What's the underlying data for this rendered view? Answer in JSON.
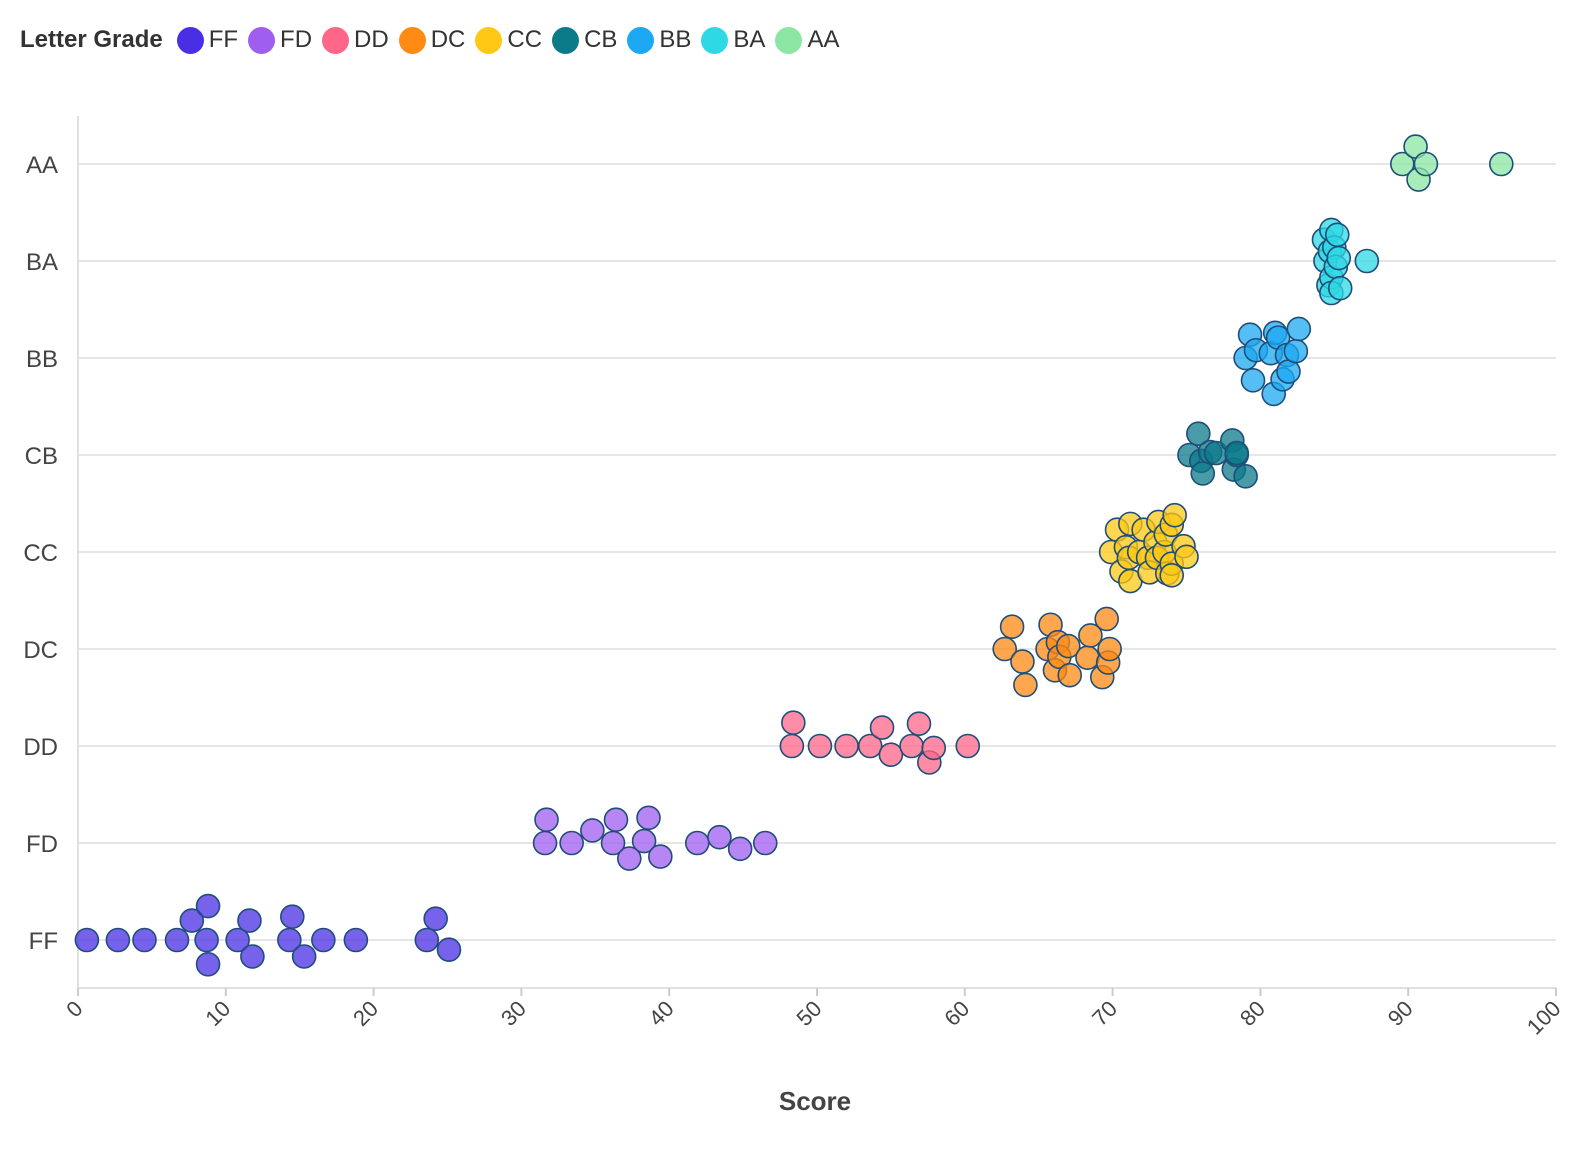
{
  "chart_data": {
    "type": "scatter",
    "title": "",
    "legend_title": "Letter Grade",
    "legend_placement": "top-left",
    "xlabel": "Score",
    "ylabel": "",
    "xlim": [
      0,
      100
    ],
    "x_ticks": [
      0,
      10,
      20,
      30,
      40,
      50,
      60,
      70,
      80,
      90,
      100
    ],
    "categories": [
      "FF",
      "FD",
      "DD",
      "DC",
      "CC",
      "CB",
      "BB",
      "BA",
      "AA"
    ],
    "grid": true,
    "series": [
      {
        "name": "FF",
        "color": "#4a2ee6",
        "points": [
          [
            0.6,
            0
          ],
          [
            2.7,
            0
          ],
          [
            4.5,
            0
          ],
          [
            6.7,
            0
          ],
          [
            7.7,
            0.2
          ],
          [
            8.8,
            0.35
          ],
          [
            8.7,
            0
          ],
          [
            8.8,
            -0.25
          ],
          [
            10.8,
            0
          ],
          [
            11.6,
            0.2
          ],
          [
            11.8,
            -0.17
          ],
          [
            14.3,
            0
          ],
          [
            14.5,
            0.24
          ],
          [
            15.3,
            -0.17
          ],
          [
            16.6,
            0
          ],
          [
            18.8,
            0
          ],
          [
            23.6,
            0
          ],
          [
            24.2,
            0.22
          ],
          [
            25.1,
            -0.1
          ]
        ]
      },
      {
        "name": "FD",
        "color": "#a05ef0",
        "points": [
          [
            31.6,
            0
          ],
          [
            31.7,
            0.24
          ],
          [
            33.4,
            0
          ],
          [
            34.8,
            0.13
          ],
          [
            36.2,
            0
          ],
          [
            36.4,
            0.24
          ],
          [
            37.3,
            -0.16
          ],
          [
            38.3,
            0.02
          ],
          [
            38.6,
            0.26
          ],
          [
            39.4,
            -0.14
          ],
          [
            41.9,
            0
          ],
          [
            43.4,
            0.06
          ],
          [
            44.8,
            -0.06
          ],
          [
            46.5,
            0
          ]
        ]
      },
      {
        "name": "DD",
        "color": "#ff6688",
        "points": [
          [
            48.3,
            0
          ],
          [
            48.4,
            0.24
          ],
          [
            50.2,
            0
          ],
          [
            52.0,
            0
          ],
          [
            53.6,
            0
          ],
          [
            54.4,
            0.19
          ],
          [
            55.0,
            -0.09
          ],
          [
            56.4,
            0
          ],
          [
            56.9,
            0.23
          ],
          [
            57.6,
            -0.17
          ],
          [
            57.9,
            -0.02
          ],
          [
            60.2,
            0
          ]
        ]
      },
      {
        "name": "DC",
        "color": "#ff8a14",
        "points": [
          [
            62.7,
            0
          ],
          [
            63.2,
            0.23
          ],
          [
            63.9,
            -0.13
          ],
          [
            64.1,
            -0.37
          ],
          [
            65.6,
            0
          ],
          [
            65.8,
            0.25
          ],
          [
            66.1,
            -0.22
          ],
          [
            66.3,
            0.07
          ],
          [
            66.4,
            -0.08
          ],
          [
            67.0,
            0.03
          ],
          [
            67.1,
            -0.27
          ],
          [
            68.3,
            -0.09
          ],
          [
            68.5,
            0.14
          ],
          [
            69.3,
            -0.29
          ],
          [
            69.6,
            0.31
          ],
          [
            69.7,
            -0.14
          ],
          [
            69.8,
            0
          ]
        ]
      },
      {
        "name": "CC",
        "color": "#ffc814",
        "points": [
          [
            69.9,
            0
          ],
          [
            70.3,
            0.23
          ],
          [
            70.6,
            -0.2
          ],
          [
            70.9,
            0.05
          ],
          [
            71.1,
            -0.06
          ],
          [
            71.2,
            0.29
          ],
          [
            71.2,
            -0.3
          ],
          [
            71.8,
            0
          ],
          [
            72.1,
            0.23
          ],
          [
            72.4,
            -0.06
          ],
          [
            72.5,
            -0.21
          ],
          [
            72.9,
            0.1
          ],
          [
            73.0,
            -0.06
          ],
          [
            73.1,
            0.31
          ],
          [
            73.5,
            0
          ],
          [
            73.6,
            0.18
          ],
          [
            73.7,
            -0.22
          ],
          [
            74.0,
            0.28
          ],
          [
            74.0,
            -0.12
          ],
          [
            74.0,
            -0.24
          ],
          [
            74.2,
            0.38
          ],
          [
            74.8,
            0.06
          ],
          [
            75.0,
            -0.05
          ]
        ]
      },
      {
        "name": "CB",
        "color": "#0b7a89",
        "points": [
          [
            75.2,
            0
          ],
          [
            75.8,
            0.22
          ],
          [
            76.0,
            -0.06
          ],
          [
            76.1,
            -0.19
          ],
          [
            76.6,
            0.03
          ],
          [
            77.0,
            0.02
          ],
          [
            78.1,
            0.15
          ],
          [
            78.2,
            -0.15
          ],
          [
            78.4,
            0
          ],
          [
            78.4,
            0.02
          ],
          [
            79.0,
            -0.22
          ]
        ]
      },
      {
        "name": "BB",
        "color": "#1ca8f2",
        "points": [
          [
            79.0,
            0
          ],
          [
            79.3,
            0.24
          ],
          [
            79.5,
            -0.23
          ],
          [
            79.7,
            0.08
          ],
          [
            80.7,
            0.05
          ],
          [
            80.9,
            -0.37
          ],
          [
            81.0,
            0.26
          ],
          [
            81.2,
            0.21
          ],
          [
            81.5,
            -0.22
          ],
          [
            81.8,
            0.03
          ],
          [
            81.9,
            -0.14
          ],
          [
            82.4,
            0.07
          ],
          [
            82.6,
            0.3
          ]
        ]
      },
      {
        "name": "BA",
        "color": "#2ed8e4",
        "points": [
          [
            84.3,
            0.22
          ],
          [
            84.4,
            0
          ],
          [
            84.6,
            -0.25
          ],
          [
            84.7,
            0.1
          ],
          [
            84.8,
            0.32
          ],
          [
            84.8,
            -0.17
          ],
          [
            84.8,
            -0.33
          ],
          [
            85.0,
            0.14
          ],
          [
            85.1,
            -0.06
          ],
          [
            85.2,
            0.27
          ],
          [
            85.3,
            0.03
          ],
          [
            85.4,
            -0.28
          ],
          [
            87.2,
            0
          ]
        ]
      },
      {
        "name": "AA",
        "color": "#8ae6a2",
        "points": [
          [
            89.6,
            0
          ],
          [
            90.5,
            0.18
          ],
          [
            90.7,
            -0.16
          ],
          [
            91.2,
            0
          ],
          [
            96.3,
            0
          ]
        ]
      }
    ]
  }
}
